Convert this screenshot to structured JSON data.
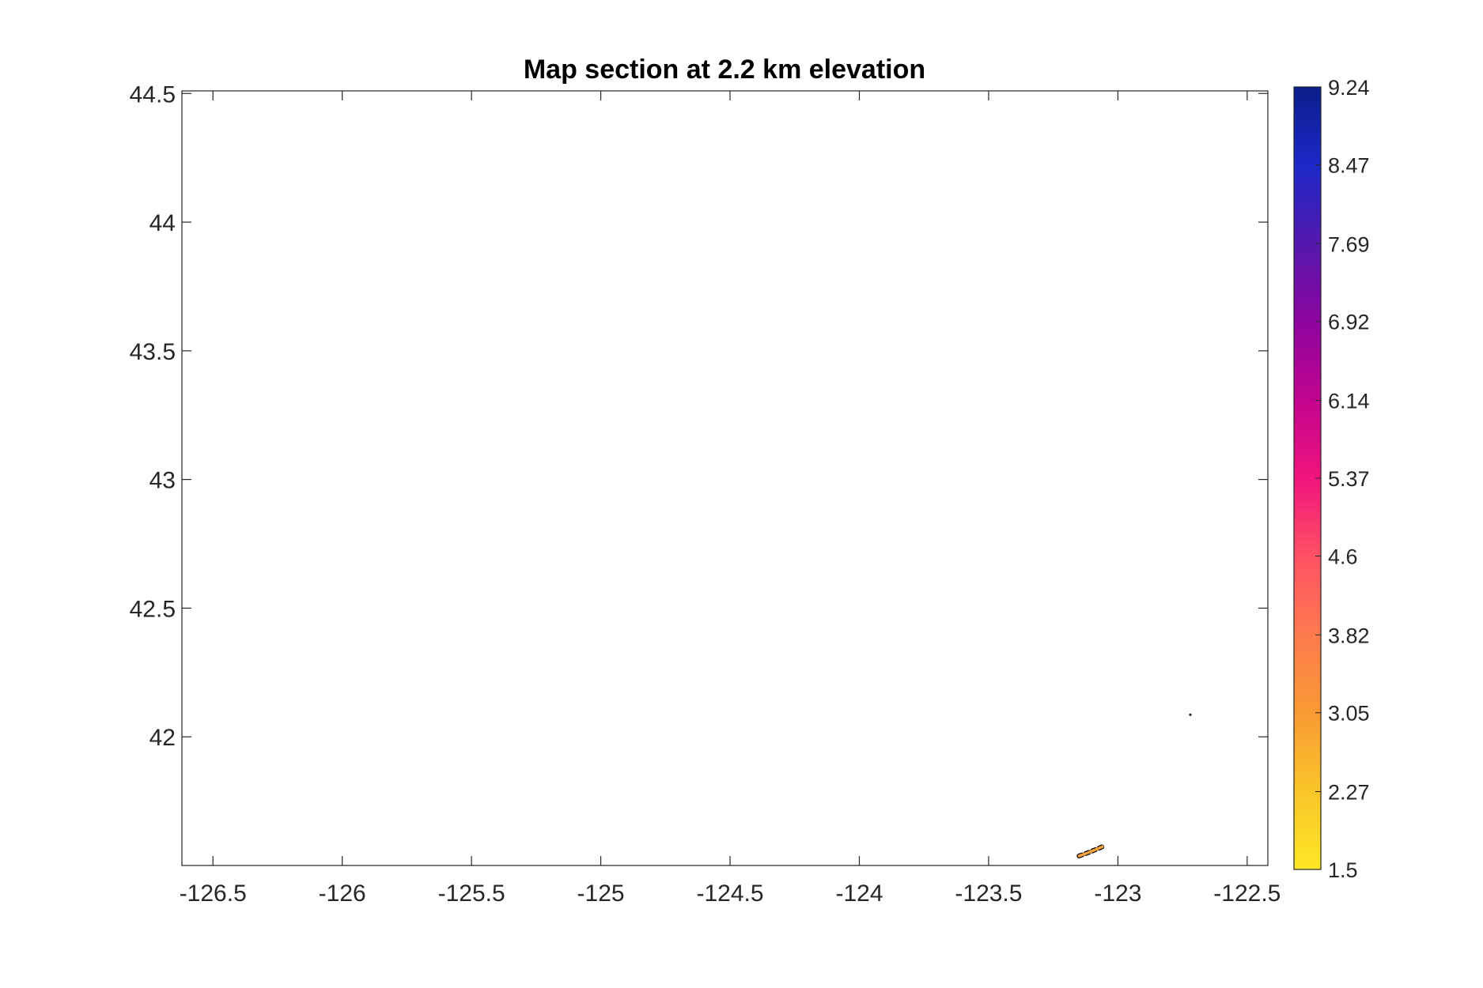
{
  "chart_data": {
    "type": "heatmap",
    "title": "Map section at 2.2 km elevation",
    "xlabel": "",
    "ylabel": "",
    "xlim": [
      -126.62,
      -122.42
    ],
    "ylim": [
      41.5,
      44.51
    ],
    "x_ticks": [
      -126.5,
      -126,
      -125.5,
      -125,
      -124.5,
      -124,
      -123.5,
      -123,
      -122.5
    ],
    "x_tick_labels": [
      "-126.5",
      "-126",
      "-125.5",
      "-125",
      "-124.5",
      "-124",
      "-123.5",
      "-123",
      "-122.5"
    ],
    "y_ticks": [
      42,
      42.5,
      43,
      43.5,
      44,
      44.5
    ],
    "y_tick_labels": [
      "42",
      "42.5",
      "43",
      "43.5",
      "44",
      "44.5"
    ],
    "grid": false,
    "colorbar": {
      "position": "right",
      "range": [
        1.5,
        9.24
      ],
      "ticks": [
        1.5,
        2.27,
        3.05,
        3.82,
        4.6,
        5.37,
        6.14,
        6.92,
        7.69,
        8.47,
        9.24
      ],
      "tick_labels": [
        "1.5",
        "2.27",
        "3.05",
        "3.82",
        "4.6",
        "5.37",
        "6.14",
        "6.92",
        "7.69",
        "8.47",
        "9.24"
      ],
      "colormap": [
        "#fde725",
        "#f9c52a",
        "#f99a33",
        "#fd7a4d",
        "#fe5165",
        "#f0147c",
        "#c2048f",
        "#8d049f",
        "#5418ad",
        "#1c28c8",
        "#0a1e8a"
      ]
    },
    "features": [
      {
        "name": "patch",
        "points": [
          [
            -123.15,
            41.537
          ],
          [
            -123.12,
            41.548
          ],
          [
            -123.09,
            41.56
          ],
          [
            -123.06,
            41.573
          ]
        ],
        "fill": "#f7a23a",
        "outline": "#000000"
      },
      {
        "name": "dot",
        "points": [
          [
            -122.72,
            42.086
          ]
        ],
        "fill": "#000000"
      }
    ]
  }
}
